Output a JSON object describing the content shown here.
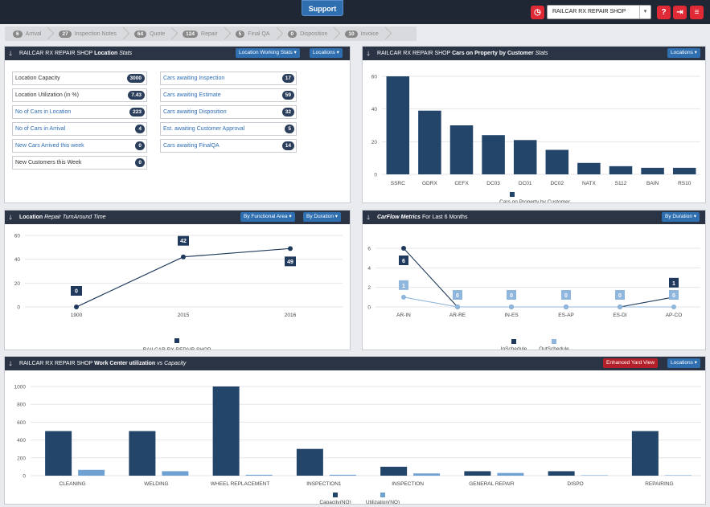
{
  "topbar": {
    "support": "Support",
    "shop": "RAILCAR RX REPAIR SHOP",
    "icons": [
      "clock-icon",
      "help-icon",
      "logout-icon",
      "menu-icon"
    ]
  },
  "flow": [
    {
      "count": "6",
      "label": "Arrival"
    },
    {
      "count": "27",
      "label": "Inspection Notes"
    },
    {
      "count": "64",
      "label": "Quote"
    },
    {
      "count": "124",
      "label": "Repair"
    },
    {
      "count": "5",
      "label": "Final QA"
    },
    {
      "count": "0",
      "label": "Disposition"
    },
    {
      "count": "10",
      "label": "Invoice"
    }
  ],
  "loc_stats": {
    "shop": "RAILCAR RX REPAIR SHOP",
    "bold": "Location",
    "italic": "Stats",
    "btn1": "Location Working Stats ▾",
    "btn2": "Locations ▾",
    "left": [
      {
        "label": "Location Capacity",
        "value": "3000",
        "style": "plain"
      },
      {
        "label": "Location Utilization (in %)",
        "value": "7.43",
        "style": "plain"
      },
      {
        "label": "No of Cars in Location",
        "value": "223",
        "style": "blue"
      },
      {
        "label": "No of Cars in Arrival",
        "value": "4",
        "style": "blue"
      },
      {
        "label": "New Cars Arrived this week",
        "value": "0",
        "style": "blue"
      },
      {
        "label": "New Customers this Week",
        "value": "0",
        "style": "plain"
      }
    ],
    "right": [
      {
        "label": "Cars awaiting Inspection",
        "value": "17"
      },
      {
        "label": "Cars awaiting Estimate",
        "value": "59"
      },
      {
        "label": "Cars awaiting Disposition",
        "value": "32"
      },
      {
        "label": "Est. awaiting Customer Approval",
        "value": "5"
      },
      {
        "label": "Cars awaiting FinalQA",
        "value": "14"
      }
    ]
  },
  "cars_customer": {
    "shop": "RAILCAR RX REPAIR SHOP",
    "bold": "Cars on Property by Customer",
    "italic": "Stats",
    "btn": "Locations ▾"
  },
  "turnaround": {
    "bold": "Location",
    "italic": "Repair TurnAround Time",
    "btn1": "By Functional Area ▾",
    "btn2": "By Duration ▾"
  },
  "carflow": {
    "bold": "CarFlow Metrics",
    "rest": "For Last 6 Months",
    "btn": "By Duration ▾"
  },
  "workcenter": {
    "shop": "RAILCAR RX REPAIR SHOP",
    "bold": "Work Center utilization",
    "vs": "vs",
    "italic": "Capacity",
    "btn1": "Enhanced Yard View",
    "btn2": "Locations ▾"
  },
  "chart_data": [
    {
      "type": "bar",
      "title": "Cars on Property by Customer",
      "categories": [
        "SSRC",
        "GDRX",
        "CEFX",
        "DC03",
        "DC01",
        "DC02",
        "NATX",
        "S112",
        "BAIN",
        "RS10"
      ],
      "values": [
        60,
        39,
        30,
        24,
        21,
        15,
        7,
        5,
        4,
        4
      ],
      "ylim": [
        0,
        60
      ],
      "yticks": [
        0,
        20,
        40,
        60
      ],
      "legend": [
        "Cars on Property by Customer"
      ],
      "color": "#23456a"
    },
    {
      "type": "line",
      "title": "Location Repair TurnAround Time",
      "categories": [
        "1900",
        "2015",
        "2016"
      ],
      "values": [
        0,
        42,
        49
      ],
      "labels": [
        "0",
        "42",
        "49"
      ],
      "ylim": [
        0,
        60
      ],
      "yticks": [
        0,
        20,
        40,
        60
      ],
      "legend": [
        "RAILCAR RX REPAIR SHOP"
      ],
      "color": "#1f3a5c"
    },
    {
      "type": "line",
      "title": "CarFlow Metrics",
      "categories": [
        "AR-IN",
        "AR-RE",
        "IN-ES",
        "ES-AP",
        "ES-DI",
        "AP-CO"
      ],
      "series": [
        {
          "name": "InSchedule",
          "values": [
            6,
            0,
            0,
            0,
            0,
            1
          ],
          "color": "#1f3a5c"
        },
        {
          "name": "OutSchedule",
          "values": [
            1,
            0,
            0,
            0,
            0,
            0
          ],
          "color": "#8fb6dc"
        }
      ],
      "ylim": [
        0,
        6
      ],
      "yticks": [
        0,
        2,
        4,
        6
      ]
    },
    {
      "type": "bar",
      "title": "Work Center utilization vs Capacity",
      "categories": [
        "CLEANING",
        "WELDING",
        "WHEEL REPLACEMENT",
        "INSPECTION1",
        "INSPECTION",
        "GENERAL REPAIR",
        "DISPO",
        "REPAIRING"
      ],
      "series": [
        {
          "name": "Capacity(NO)",
          "values": [
            500,
            500,
            1000,
            300,
            100,
            50,
            50,
            500
          ],
          "color": "#23456a"
        },
        {
          "name": "Utilization(NO)",
          "values": [
            65,
            50,
            10,
            10,
            25,
            30,
            5,
            5
          ],
          "color": "#6fa1d3"
        }
      ],
      "ylim": [
        0,
        1000
      ],
      "yticks": [
        0,
        200,
        400,
        600,
        800,
        1000
      ]
    }
  ]
}
